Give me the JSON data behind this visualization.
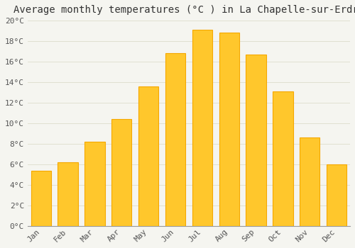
{
  "title": "Average monthly temperatures (°C ) in La Chapelle-sur-Erdre",
  "months": [
    "Jan",
    "Feb",
    "Mar",
    "Apr",
    "May",
    "Jun",
    "Jul",
    "Aug",
    "Sep",
    "Oct",
    "Nov",
    "Dec"
  ],
  "values": [
    5.4,
    6.2,
    8.2,
    10.4,
    13.6,
    16.8,
    19.1,
    18.8,
    16.7,
    13.1,
    8.6,
    6.0
  ],
  "bar_color_main": "#FFC72C",
  "bar_color_edge": "#F5A800",
  "ylim": [
    0,
    20
  ],
  "ytick_step": 2,
  "background_color": "#F5F5F0",
  "grid_color": "#DDDDCC",
  "title_fontsize": 10,
  "tick_fontsize": 8,
  "font_family": "monospace",
  "bar_width": 0.75
}
